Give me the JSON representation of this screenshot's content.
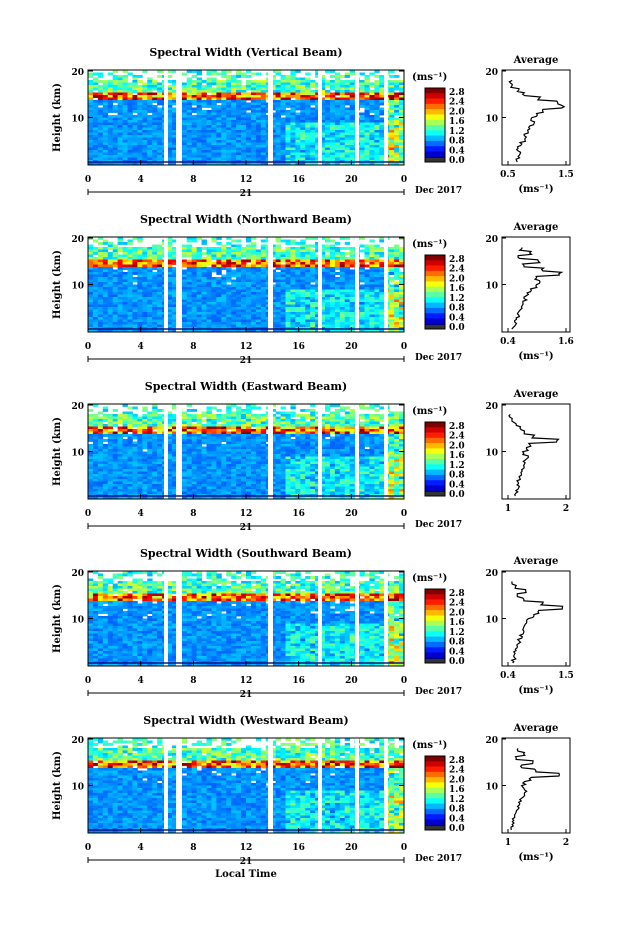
{
  "chart_data": [
    {
      "type": "heatmap",
      "title": "Spectral Width (Vertical Beam)",
      "ylabel": "Height (km)",
      "yticks": [
        "20",
        "10"
      ],
      "xticks": [
        "0",
        "4",
        "8",
        "12",
        "16",
        "20",
        "0"
      ],
      "day_label": "21",
      "date_label": "Dec 2017",
      "colorbar": {
        "unit": "(ms⁻¹)",
        "ticks": [
          "2.8",
          "2.4",
          "2.0",
          "1.6",
          "1.2",
          "0.8",
          "0.4",
          "0.0"
        ]
      },
      "average": {
        "title": "Average",
        "xlabel": "(ms⁻¹)",
        "xticks": [
          "0.5",
          "1.5"
        ],
        "yticks": [
          "20",
          "10"
        ]
      }
    },
    {
      "type": "heatmap",
      "title": "Spectral Width (Northward Beam)",
      "ylabel": "Height (km)",
      "yticks": [
        "20",
        "10"
      ],
      "xticks": [
        "0",
        "4",
        "8",
        "12",
        "16",
        "20",
        "0"
      ],
      "day_label": "21",
      "date_label": "Dec 2017",
      "colorbar": {
        "unit": "(ms⁻¹)",
        "ticks": [
          "2.8",
          "2.4",
          "2.0",
          "1.6",
          "1.2",
          "0.8",
          "0.4",
          "0.0"
        ]
      },
      "average": {
        "title": "Average",
        "xlabel": "(ms⁻¹)",
        "xticks": [
          "0.4",
          "1.6"
        ],
        "yticks": [
          "20",
          "10"
        ]
      }
    },
    {
      "type": "heatmap",
      "title": "Spectral Width (Eastward Beam)",
      "ylabel": "Height (km)",
      "yticks": [
        "20",
        "10"
      ],
      "xticks": [
        "0",
        "4",
        "8",
        "12",
        "16",
        "20",
        "0"
      ],
      "day_label": "21",
      "date_label": "Dec 2017",
      "colorbar": {
        "unit": "(ms⁻¹)",
        "ticks": [
          "2.8",
          "2.4",
          "2.0",
          "1.6",
          "1.2",
          "0.8",
          "0.4",
          "0.0"
        ]
      },
      "average": {
        "title": "Average",
        "xlabel": "",
        "xticks": [
          "1",
          "2"
        ],
        "yticks": [
          "20",
          "10"
        ]
      }
    },
    {
      "type": "heatmap",
      "title": "Spectral Width (Southward Beam)",
      "ylabel": "Height (km)",
      "yticks": [
        "20",
        "10"
      ],
      "xticks": [
        "0",
        "4",
        "8",
        "12",
        "16",
        "20",
        "0"
      ],
      "day_label": "21",
      "date_label": "Dec 2017",
      "colorbar": {
        "unit": "(ms⁻¹)",
        "ticks": [
          "2.8",
          "2.4",
          "2.0",
          "1.6",
          "1.2",
          "0.8",
          "0.4",
          "0.0"
        ]
      },
      "average": {
        "title": "Average",
        "xlabel": "(ms⁻¹)",
        "xticks": [
          "0.4",
          "1.5"
        ],
        "yticks": [
          "20",
          "10"
        ]
      }
    },
    {
      "type": "heatmap",
      "title": "Spectral Width (Westward Beam)",
      "ylabel": "Height (km)",
      "yticks": [
        "20",
        "10"
      ],
      "xticks": [
        "0",
        "4",
        "8",
        "12",
        "16",
        "20",
        "0"
      ],
      "day_label": "21",
      "date_label": "Dec 2017",
      "xlabel": "Local Time",
      "colorbar": {
        "unit": "(ms⁻¹)",
        "ticks": [
          "2.8",
          "2.4",
          "2.0",
          "1.6",
          "1.2",
          "0.8",
          "0.4",
          "0.0"
        ]
      },
      "average": {
        "title": "Average",
        "xlabel": "(ms⁻¹)",
        "xticks": [
          "1",
          "2"
        ],
        "yticks": [
          "20",
          "10"
        ]
      }
    }
  ]
}
